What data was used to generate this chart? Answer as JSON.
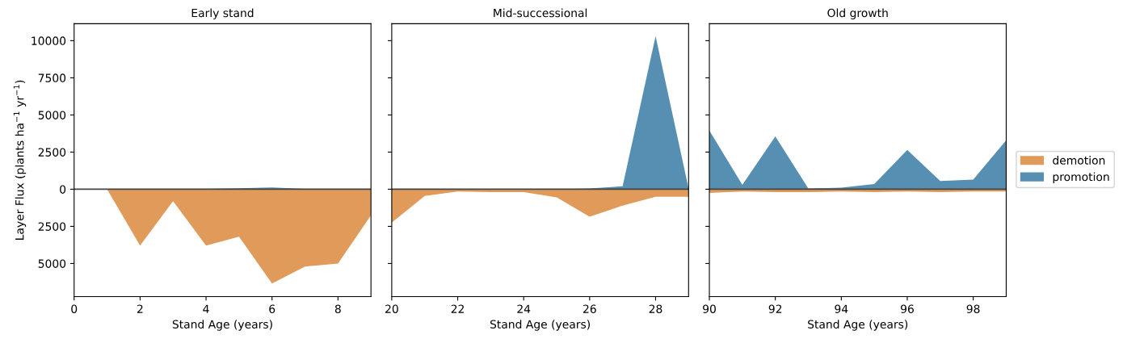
{
  "chart_data": [
    {
      "type": "area",
      "title": "Early stand",
      "xlabel": "Stand Age (years)",
      "ylabel": "Layer Flux (plants ha$^{−1}$ yr$^{−1}$)",
      "x": [
        0,
        1,
        2,
        3,
        4,
        5,
        6,
        7,
        8,
        9
      ],
      "series": [
        {
          "name": "demotion",
          "color": "#e09b5a",
          "values": [
            0,
            0,
            -3800,
            -800,
            -3800,
            -3200,
            -6350,
            -5200,
            -5000,
            -1750
          ]
        },
        {
          "name": "promotion",
          "color": "#568fb1",
          "values": [
            0,
            0,
            0,
            0,
            20,
            60,
            120,
            30,
            20,
            10
          ]
        }
      ],
      "xlim": [
        0,
        9
      ],
      "xticks": [
        0,
        2,
        4,
        6,
        8
      ],
      "ylim": [
        -7230,
        11140
      ],
      "yticks": [
        {
          "value": -5000,
          "label": "5000"
        },
        {
          "value": -2500,
          "label": "2500"
        },
        0,
        2500,
        5000,
        7500,
        10000
      ],
      "ref_lines": [
        {
          "axis": "y",
          "value": 0,
          "color": "#444444"
        }
      ],
      "grid": false,
      "legend": "right"
    },
    {
      "type": "area",
      "title": "Mid-successional",
      "xlabel": "Stand Age (years)",
      "x": [
        20,
        21,
        22,
        23,
        24,
        25,
        26,
        27,
        28,
        29
      ],
      "series": [
        {
          "color": "#e09b5a",
          "values": [
            -2250,
            -450,
            -150,
            -200,
            -200,
            -550,
            -1850,
            -1100,
            -500,
            -500
          ]
        },
        {
          "color": "#568fb1",
          "values": [
            0,
            0,
            0,
            0,
            0,
            0,
            50,
            200,
            10300,
            50
          ]
        }
      ],
      "xlim": [
        20,
        29
      ],
      "xticks": [
        20,
        22,
        24,
        26,
        28
      ],
      "ylim": [
        -7230,
        11140
      ],
      "yticks": [
        {
          "value": -5000,
          "label": null
        },
        {
          "value": -2500,
          "label": null
        },
        {
          "value": 0,
          "label": null
        },
        {
          "value": 2500,
          "label": null
        },
        {
          "value": 5000,
          "label": null
        },
        {
          "value": 7500,
          "label": null
        },
        {
          "value": 10000,
          "label": null
        }
      ],
      "tick_labels": "x",
      "ref_lines": [
        {
          "axis": "y",
          "value": 0,
          "color": "#444444"
        }
      ],
      "grid": false,
      "legend": false
    },
    {
      "type": "area",
      "title": "Old growth",
      "xlabel": "Stand Age (years)",
      "x": [
        90,
        91,
        92,
        93,
        94,
        95,
        96,
        97,
        98,
        99
      ],
      "series": [
        {
          "color": "#e09b5a",
          "values": [
            -250,
            -150,
            -200,
            -200,
            -150,
            -200,
            -150,
            -200,
            -150,
            -150
          ]
        },
        {
          "color": "#568fb1",
          "values": [
            3950,
            300,
            3550,
            50,
            100,
            350,
            2650,
            550,
            650,
            3300
          ]
        }
      ],
      "xlim": [
        90,
        99
      ],
      "xticks": [
        90,
        92,
        94,
        96,
        98
      ],
      "ylim": [
        -7230,
        11140
      ],
      "yticks": [
        {
          "value": -5000,
          "label": null
        },
        {
          "value": -2500,
          "label": null
        },
        {
          "value": 0,
          "label": null
        },
        {
          "value": 2500,
          "label": null
        },
        {
          "value": 5000,
          "label": null
        },
        {
          "value": 7500,
          "label": null
        },
        {
          "value": 10000,
          "label": null
        }
      ],
      "tick_labels": "x",
      "ref_lines": [
        {
          "axis": "y",
          "value": 0,
          "color": "#444444"
        }
      ],
      "grid": false
    }
  ]
}
